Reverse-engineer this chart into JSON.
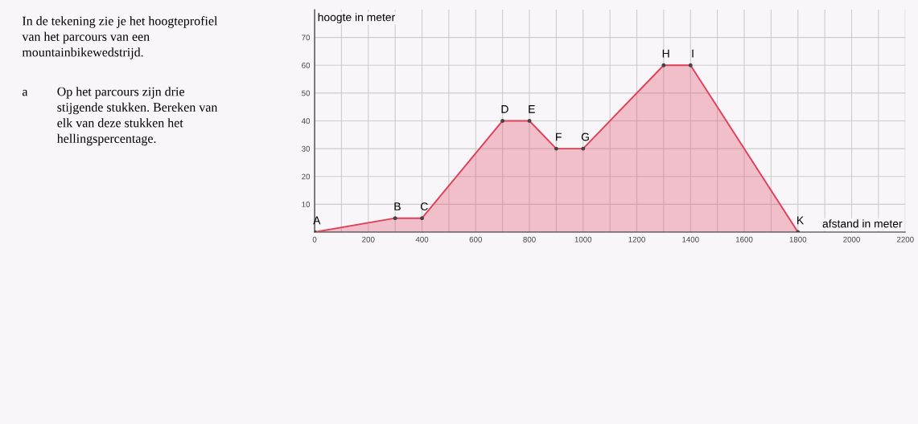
{
  "chart_data": {
    "type": "area",
    "xlabel": "afstand in meter",
    "ylabel": "hoogte in meter",
    "x": [
      0,
      300,
      400,
      700,
      800,
      900,
      1000,
      1300,
      1400,
      1800
    ],
    "series": [
      {
        "color": "#e0405a",
        "values": [
          0,
          5,
          5,
          40,
          40,
          30,
          30,
          60,
          60,
          0
        ]
      }
    ],
    "xlim": [
      0,
      2200
    ],
    "ylim": [
      0,
      80
    ],
    "xticks": [
      0,
      {
        "value": 100,
        "label": null
      },
      200,
      {
        "value": 300,
        "label": null
      },
      400,
      {
        "value": 500,
        "label": null
      },
      600,
      {
        "value": 700,
        "label": null
      },
      800,
      {
        "value": 900,
        "label": null
      },
      1000,
      {
        "value": 1100,
        "label": null
      },
      1200,
      {
        "value": 1300,
        "label": null
      },
      1400,
      {
        "value": 1500,
        "label": null
      },
      1600,
      {
        "value": 1700,
        "label": null
      },
      1800,
      {
        "value": 1900,
        "label": null
      },
      2000,
      {
        "value": 2100,
        "label": null
      },
      2200
    ],
    "yticks": [
      10,
      20,
      30,
      40,
      50,
      60,
      70
    ],
    "grid": true,
    "marker": "circle",
    "line_style": "solid",
    "annotations": [
      "In de tekening zie je het hoogteprofiel\nvan het parcours van een\nmountainbikewedstrijd.",
      "a",
      "Op het parcours zijn drie\nstijgende stukken. Bereken van\nelk van deze stukken het\nhellingspercentage.",
      {
        "text": "A",
        "x": 0,
        "y": 0
      },
      {
        "text": "B",
        "x": 300,
        "y": 5
      },
      {
        "text": "C",
        "x": 400,
        "y": 5
      },
      {
        "text": "D",
        "x": 700,
        "y": 40
      },
      {
        "text": "E",
        "x": 800,
        "y": 40
      },
      {
        "text": "F",
        "x": 900,
        "y": 30
      },
      {
        "text": "G",
        "x": 1000,
        "y": 30
      },
      {
        "text": "H",
        "x": 1300,
        "y": 60
      },
      {
        "text": "I",
        "x": 1400,
        "y": 60
      },
      {
        "text": "K",
        "x": 1800,
        "y": 0
      }
    ]
  }
}
